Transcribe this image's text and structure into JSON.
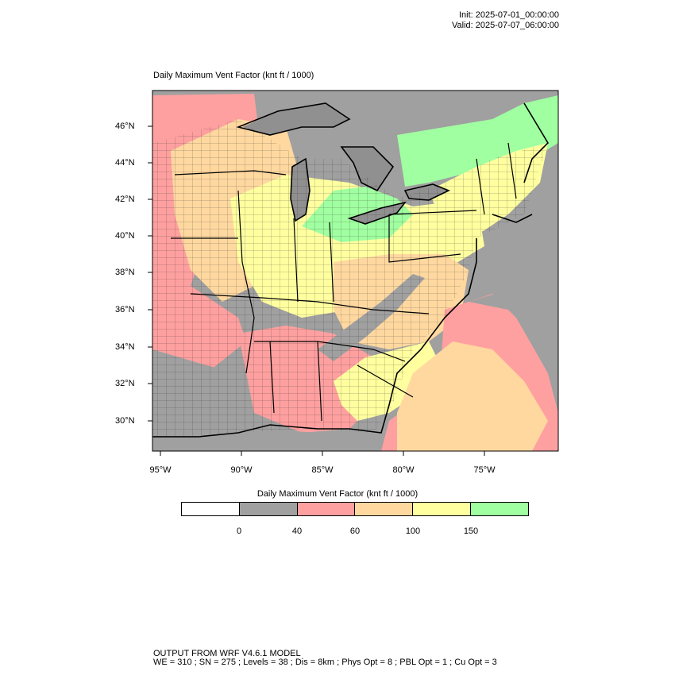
{
  "header": {
    "init": "Init: 2025-07-01_00:00:00",
    "valid": "Valid: 2025-07-07_06:00:00"
  },
  "plot": {
    "title": "Daily Maximum Vent Factor   (knt ft / 1000)"
  },
  "axes": {
    "lat_labels": [
      "46°N",
      "44°N",
      "42°N",
      "40°N",
      "38°N",
      "36°N",
      "34°N",
      "32°N",
      "30°N"
    ],
    "lon_labels": [
      "95°W",
      "90°W",
      "85°W",
      "80°W",
      "75°W"
    ]
  },
  "colorbar": {
    "title": "Daily Maximum Vent Factor  (knt ft / 1000)",
    "colors": [
      "#ffffff",
      "#a0a0a0",
      "#ffa0a0",
      "#ffd8a0",
      "#ffffa0",
      "#a0ffa0"
    ],
    "ticks": [
      "0",
      "40",
      "60",
      "100",
      "150"
    ]
  },
  "colors": {
    "land_gray": "#a0a0a0",
    "water_gray": "#909090",
    "pink": "#ffa0a0",
    "orange": "#ffd8a0",
    "yellow": "#ffffa0",
    "green": "#a0ffa0"
  },
  "footer": {
    "line1": "OUTPUT FROM WRF V4.6.1 MODEL",
    "line2": "WE = 310 ; SN = 275 ; Levels = 38 ; Dis = 8km ; Phys Opt = 8 ; PBL Opt = 1 ; Cu Opt = 3"
  }
}
